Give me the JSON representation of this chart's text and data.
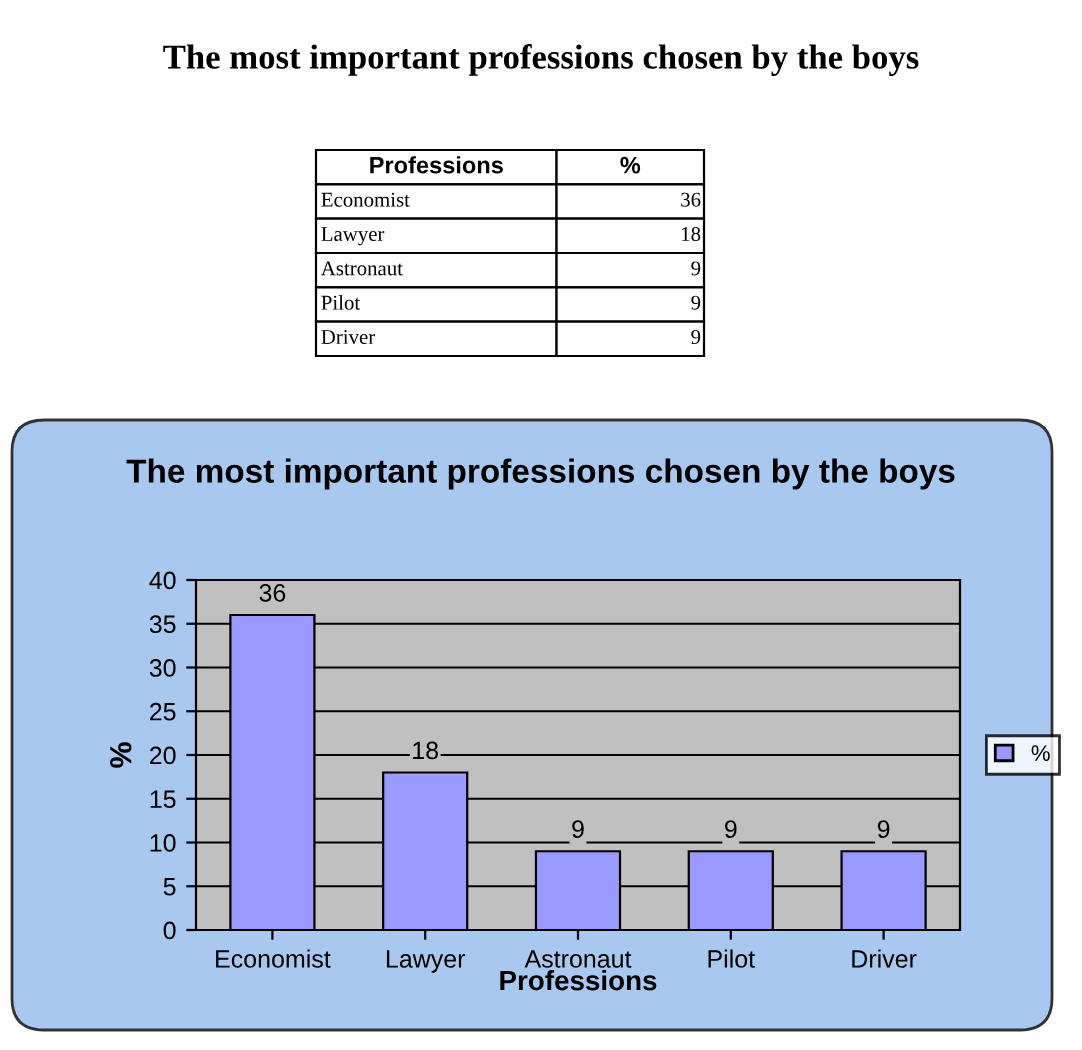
{
  "chart_data": [
    {
      "type": "other",
      "title": "The most important professions chosen by the boys",
      "xlabel": "Professions",
      "categories": [
        "Economist",
        "Lawyer",
        "Astronaut",
        "Pilot",
        "Driver"
      ],
      "series": [
        {
          "name": "%",
          "values": [
            36,
            18,
            9,
            9,
            9
          ]
        }
      ],
      "data_labels": true
    },
    {
      "type": "bar",
      "title": "The most important professions chosen by the boys",
      "xlabel": "Professions",
      "ylabel": "%",
      "categories": [
        "Economist",
        "Lawyer",
        "Astronaut",
        "Pilot",
        "Driver"
      ],
      "series": [
        {
          "name": "%",
          "color": "#9999ff",
          "values": [
            36,
            18,
            9,
            9,
            9
          ]
        }
      ],
      "ylim": [
        0,
        40
      ],
      "yticks": [
        0,
        5,
        10,
        15,
        20,
        25,
        30,
        35,
        40
      ],
      "grid": "y",
      "legend": "right",
      "data_labels": true
    }
  ]
}
